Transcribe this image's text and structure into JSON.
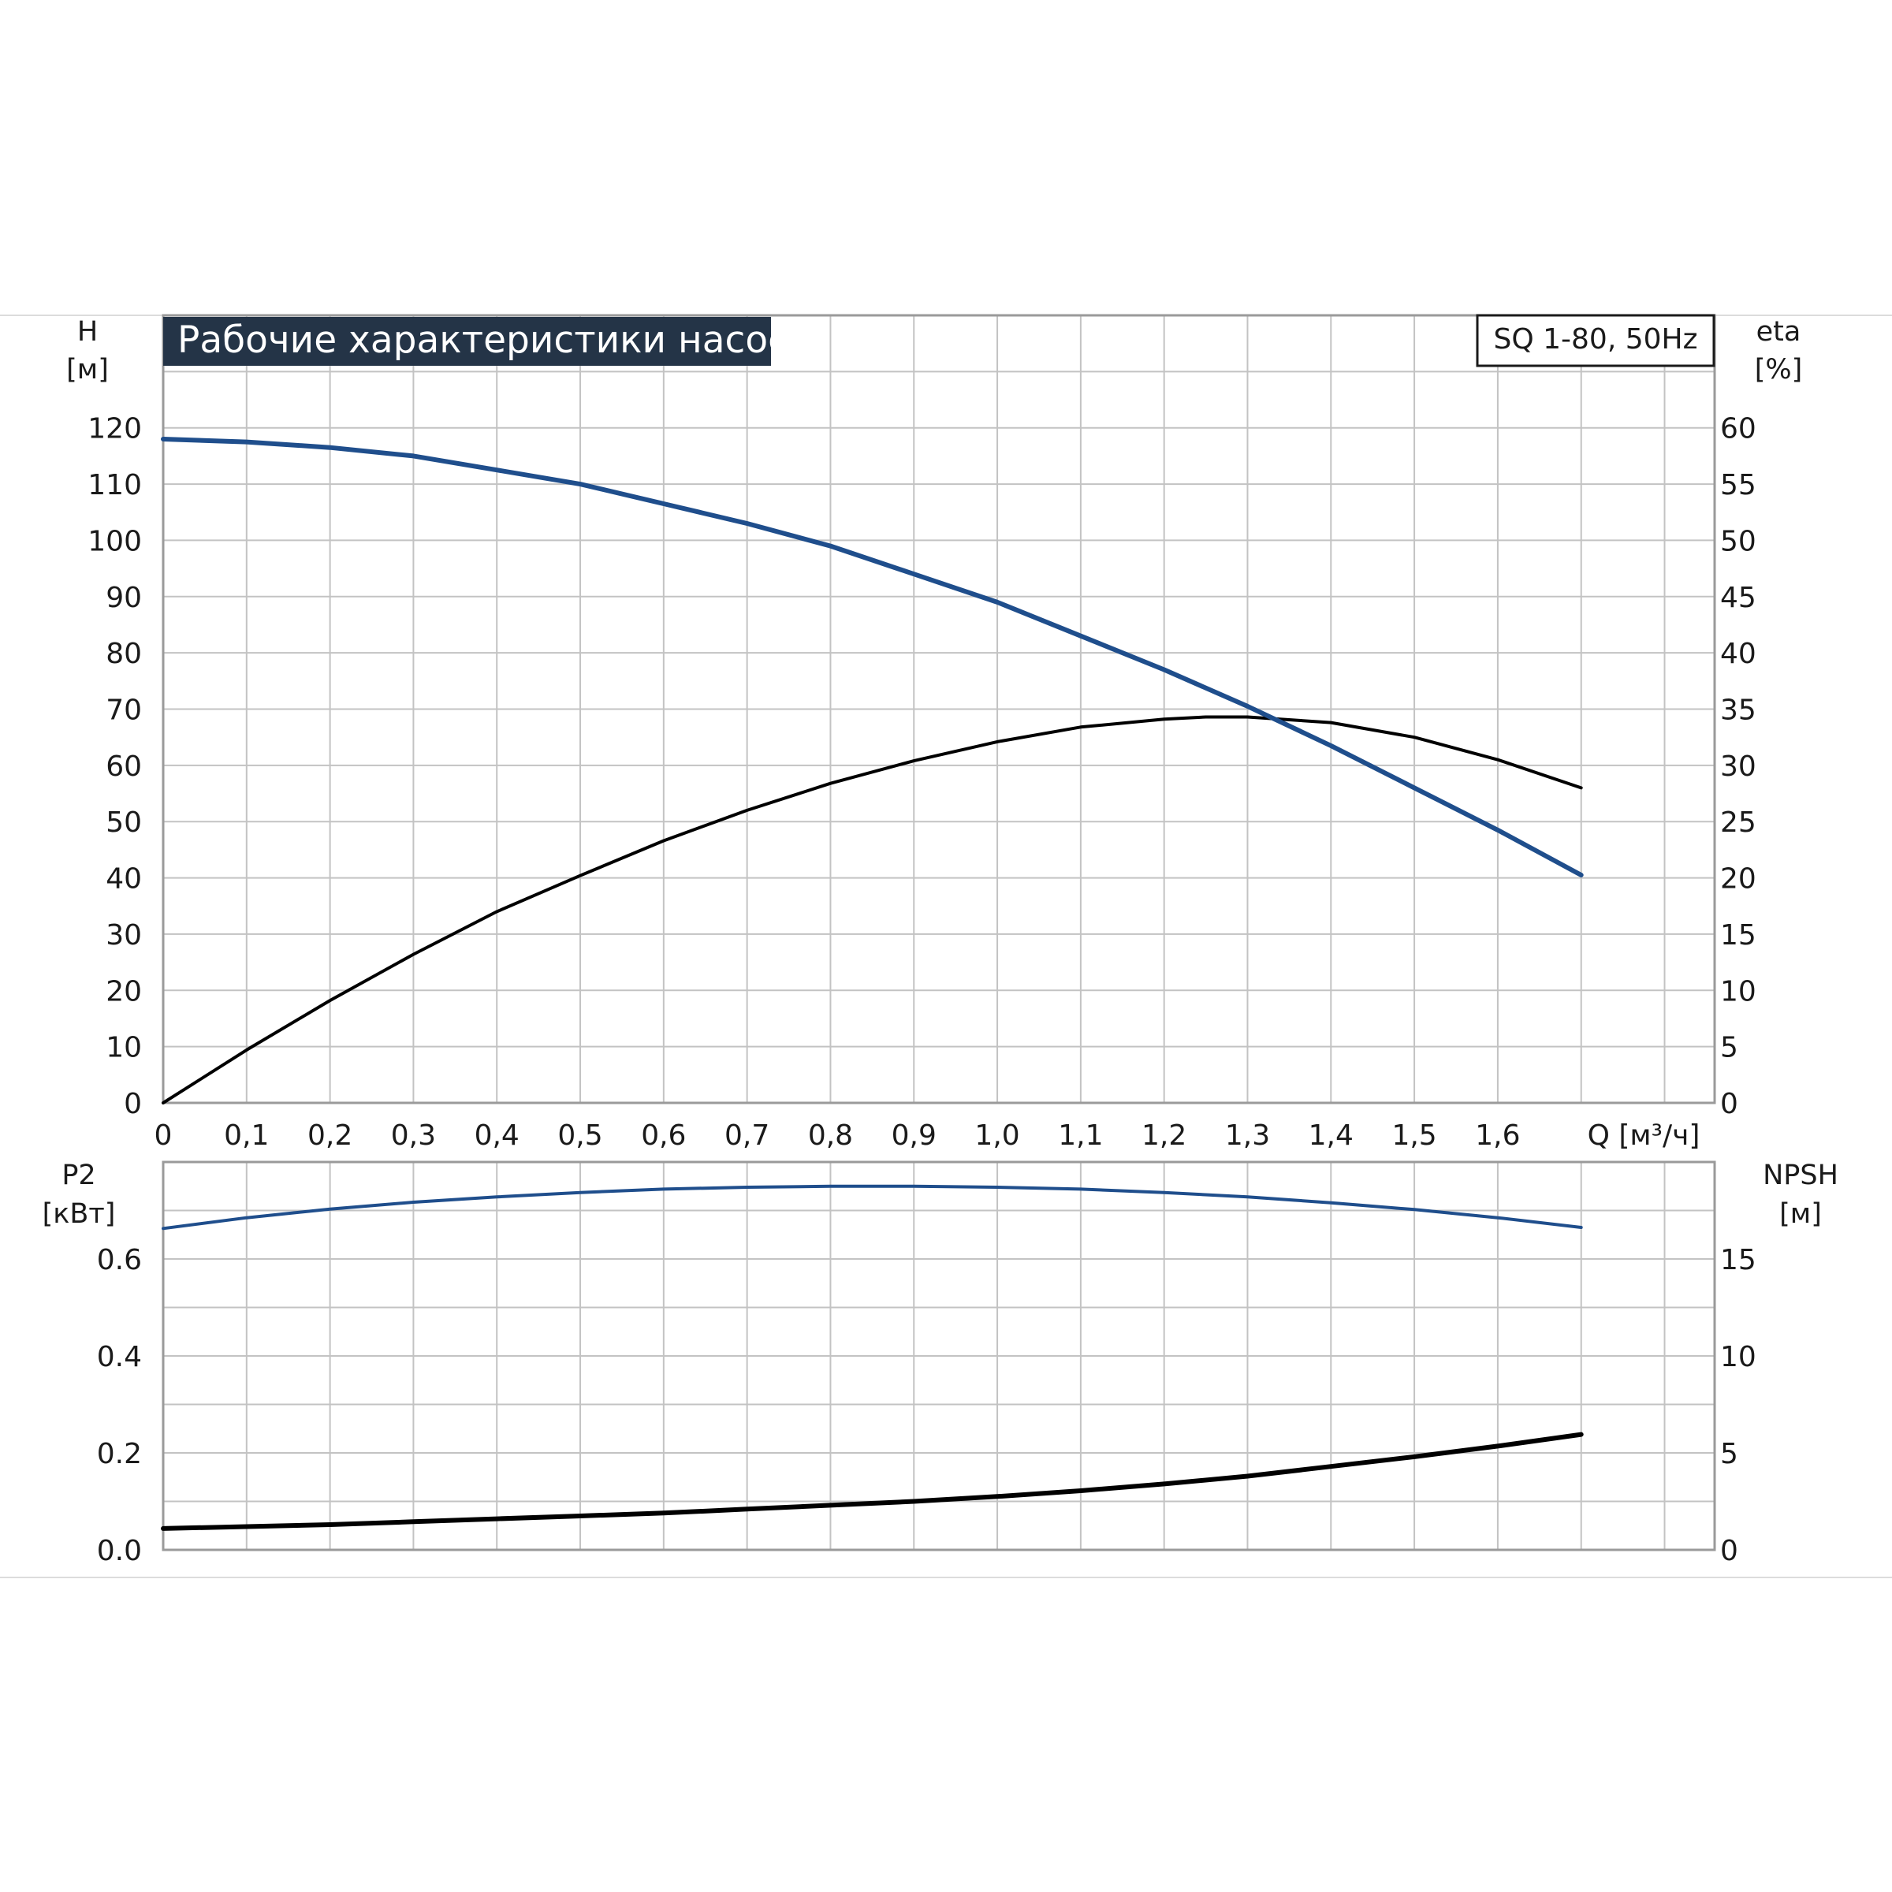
{
  "chart_data": [
    {
      "type": "line",
      "title": "Рабочие характеристики насоса",
      "model_label": "SQ 1-80, 50Hz",
      "ylabel_left": "H",
      "ylabel_left_unit": "[м]",
      "ylabel_right": "eta",
      "ylabel_right_unit": "[%]",
      "xlabel": "Q [м³/ч]",
      "xlim": [
        0,
        1.86
      ],
      "ylim_left": [
        0,
        140
      ],
      "ylim_right": [
        0,
        70
      ],
      "x_tick_labels": [
        "0",
        "0,1",
        "0,2",
        "0,3",
        "0,4",
        "0,5",
        "0,6",
        "0,7",
        "0,8",
        "0,9",
        "1,0",
        "1,1",
        "1,2",
        "1,3",
        "1,4",
        "1,5",
        "1,6"
      ],
      "y_left_ticks": [
        0,
        10,
        20,
        30,
        40,
        50,
        60,
        70,
        80,
        90,
        100,
        110,
        120
      ],
      "y_right_ticks": [
        0,
        5,
        10,
        15,
        20,
        25,
        30,
        35,
        40,
        45,
        50,
        55,
        60
      ],
      "grid": true,
      "series": [
        {
          "axis": "left",
          "color": "#1f4e8c",
          "x": [
            0,
            0.1,
            0.2,
            0.3,
            0.4,
            0.5,
            0.6,
            0.7,
            0.8,
            0.9,
            1.0,
            1.1,
            1.2,
            1.3,
            1.4,
            1.5,
            1.6,
            1.7
          ],
          "values": [
            118,
            117.5,
            116.5,
            115,
            112.5,
            110,
            106.5,
            103,
            99,
            94,
            89,
            83,
            77,
            70.5,
            63.5,
            56,
            48.5,
            40.5
          ]
        },
        {
          "axis": "right",
          "color": "#000000",
          "x": [
            0,
            0.1,
            0.2,
            0.3,
            0.4,
            0.5,
            0.6,
            0.7,
            0.8,
            0.9,
            1.0,
            1.1,
            1.2,
            1.25,
            1.3,
            1.4,
            1.5,
            1.6,
            1.7
          ],
          "values": [
            0,
            4.7,
            9.1,
            13.2,
            17,
            20.2,
            23.3,
            26,
            28.4,
            30.4,
            32.1,
            33.4,
            34.1,
            34.3,
            34.3,
            33.8,
            32.5,
            30.5,
            28
          ]
        }
      ]
    },
    {
      "type": "line",
      "ylabel_left": "P2",
      "ylabel_left_unit": "[кВт]",
      "ylabel_right": "NPSH",
      "ylabel_right_unit": "[м]",
      "xlim": [
        0,
        1.86
      ],
      "ylim_left": [
        0,
        0.8
      ],
      "ylim_right": [
        0,
        20
      ],
      "y_left_ticks": [
        "0.0",
        "0.2",
        "0.4",
        "0.6"
      ],
      "y_right_ticks": [
        0,
        5,
        10,
        15
      ],
      "grid": true,
      "series": [
        {
          "axis": "left",
          "color": "#1f4e8c",
          "x": [
            0,
            0.1,
            0.2,
            0.3,
            0.4,
            0.5,
            0.6,
            0.7,
            0.8,
            0.9,
            1.0,
            1.1,
            1.2,
            1.3,
            1.4,
            1.5,
            1.6,
            1.7
          ],
          "values": [
            0.663,
            0.685,
            0.703,
            0.717,
            0.728,
            0.737,
            0.744,
            0.748,
            0.75,
            0.75,
            0.748,
            0.744,
            0.737,
            0.728,
            0.716,
            0.702,
            0.685,
            0.665
          ]
        },
        {
          "axis": "right",
          "color": "#000000",
          "x": [
            0,
            0.1,
            0.2,
            0.3,
            0.4,
            0.5,
            0.6,
            0.7,
            0.8,
            0.9,
            1.0,
            1.1,
            1.2,
            1.3,
            1.4,
            1.5,
            1.6,
            1.7
          ],
          "values": [
            1.1,
            1.2,
            1.3,
            1.45,
            1.6,
            1.75,
            1.9,
            2.1,
            2.3,
            2.5,
            2.75,
            3.05,
            3.4,
            3.8,
            4.3,
            4.8,
            5.35,
            5.95
          ]
        }
      ]
    }
  ]
}
